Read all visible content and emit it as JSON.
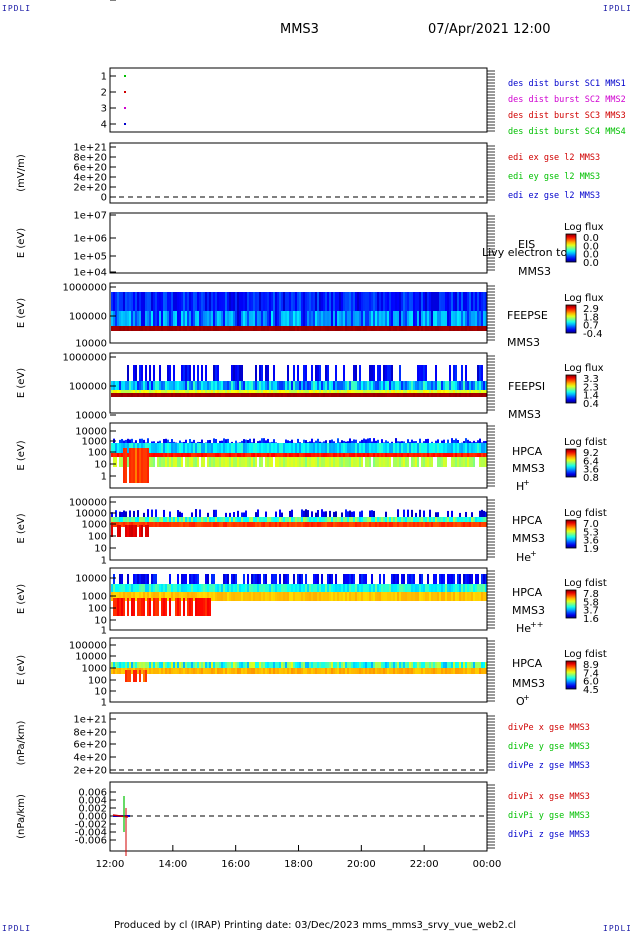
{
  "header": {
    "corner_left_top": "IPDLI",
    "corner_right_top": "IPDLI",
    "corner_left_bottom": "IPDLI",
    "corner_right_bottom": "IPDLI",
    "spacecraft": "MMS3",
    "datetime": "07/Apr/2021 12:00"
  },
  "footer": {
    "text": "Produced by cl (IRAP)   Printing date: 03/Dec/2023   mms_mms3_srvy_vue_web2.cl"
  },
  "chart_data": [
    {
      "id": "burst-flags",
      "type": "scatter",
      "yticks": [
        "1",
        "2",
        "3",
        "4"
      ],
      "ylim": [
        0.5,
        4.5
      ],
      "series": [
        {
          "name": "des dist burst SC1 MMS1",
          "color": "#0000cc",
          "x": [
            0.5
          ],
          "y": [
            1
          ]
        },
        {
          "name": "des dist burst SC2 MMS2",
          "color": "#d000d0",
          "x": [
            0.5
          ],
          "y": [
            2
          ]
        },
        {
          "name": "des dist burst SC3 MMS3",
          "color": "#d00000",
          "x": [
            0.5
          ],
          "y": [
            3
          ]
        },
        {
          "name": "des dist burst SC4 MMS4",
          "color": "#00c000",
          "x": [
            0.5
          ],
          "y": [
            4
          ]
        }
      ]
    },
    {
      "id": "edi-efield",
      "type": "line",
      "ylabel": "(mV/m)",
      "yticks": [
        "1e+21",
        "8e+20",
        "6e+20",
        "4e+20",
        "2e+20",
        "0"
      ],
      "legend": [
        {
          "name": "edi ex gse l2 MMS3",
          "color": "#d00000"
        },
        {
          "name": "edi ey gse l2 MMS3",
          "color": "#00c000"
        },
        {
          "name": "edi ez gse l2 MMS3",
          "color": "#0000cc"
        }
      ]
    },
    {
      "id": "eis",
      "type": "heatmap",
      "ylabel": "E (eV)",
      "yticks": [
        "1e+07",
        "1e+06",
        "1e+05",
        "1e+04"
      ],
      "instrument": "EIS",
      "sc": "MMS3",
      "overlay": "Livy electron to",
      "cbar_title": "Log flux",
      "cbar_ticks": [
        "0.0",
        "0.0",
        "0.0",
        "0.0"
      ]
    },
    {
      "id": "feepse",
      "type": "heatmap",
      "ylabel": "E (eV)",
      "yticks": [
        "1000000",
        "100000",
        "10000"
      ],
      "instrument": "FEEPSE",
      "sc": "MMS3",
      "cbar_title": "Log flux",
      "cbar_ticks": [
        "2.9",
        "1.8",
        "0.7",
        "-0.4"
      ]
    },
    {
      "id": "feepsi",
      "type": "heatmap",
      "ylabel": "E (eV)",
      "yticks": [
        "1000000",
        "100000",
        "10000"
      ],
      "instrument": "FEEPSI",
      "sc": "MMS3",
      "cbar_title": "Log flux",
      "cbar_ticks": [
        "3.3",
        "2.3",
        "1.4",
        "0.4"
      ]
    },
    {
      "id": "hpca-h",
      "type": "heatmap",
      "ylabel": "E (eV)",
      "yticks": [
        "10000",
        "1000",
        "100",
        "10",
        "1"
      ],
      "instrument": "HPCA",
      "sc": "MMS3",
      "species": "H",
      "charge": "+",
      "cbar_title": "Log fdist",
      "cbar_ticks": [
        "9.2",
        "6.4",
        "3.6",
        "0.8"
      ]
    },
    {
      "id": "hpca-he",
      "type": "heatmap",
      "ylabel": "E (eV)",
      "yticks": [
        "100000",
        "10000",
        "1000",
        "100",
        "10",
        "1"
      ],
      "instrument": "HPCA",
      "sc": "MMS3",
      "species": "He",
      "charge": "+",
      "cbar_title": "Log fdist",
      "cbar_ticks": [
        "7.0",
        "5.3",
        "3.6",
        "1.9"
      ]
    },
    {
      "id": "hpca-hepp",
      "type": "heatmap",
      "ylabel": "E (eV)",
      "yticks": [
        "10000",
        "1000",
        "100",
        "10",
        "1"
      ],
      "instrument": "HPCA",
      "sc": "MMS3",
      "species": "He",
      "charge": "++",
      "cbar_title": "Log fdist",
      "cbar_ticks": [
        "7.8",
        "5.8",
        "3.7",
        "1.6"
      ]
    },
    {
      "id": "hpca-o",
      "type": "heatmap",
      "ylabel": "E (eV)",
      "yticks": [
        "100000",
        "10000",
        "1000",
        "100",
        "10",
        "1"
      ],
      "instrument": "HPCA",
      "sc": "MMS3",
      "species": "O",
      "charge": "+",
      "cbar_title": "Log fdist",
      "cbar_ticks": [
        "8.9",
        "7.4",
        "6.0",
        "4.5"
      ]
    },
    {
      "id": "divpe",
      "type": "line",
      "ylabel": "(nPa/km)",
      "yticks": [
        "1e+21",
        "8e+20",
        "6e+20",
        "4e+20",
        "2e+20",
        "0"
      ],
      "legend": [
        {
          "name": "divPe x gse MMS3",
          "color": "#d00000"
        },
        {
          "name": "divPe y gse MMS3",
          "color": "#00c000"
        },
        {
          "name": "divPe z gse MMS3",
          "color": "#0000cc"
        }
      ]
    },
    {
      "id": "divpi",
      "type": "line",
      "ylabel": "(nPa/km)",
      "yticks": [
        "0.006",
        "0.004",
        "0.002",
        "0.000",
        "-0.002",
        "-0.004",
        "-0.006"
      ],
      "legend": [
        {
          "name": "divPi x gse MMS3",
          "color": "#d00000"
        },
        {
          "name": "divPi y gse MMS3",
          "color": "#00c000"
        },
        {
          "name": "divPi z gse MMS3",
          "color": "#0000cc"
        }
      ],
      "xticks": [
        "12:00",
        "14:00",
        "16:00",
        "18:00",
        "20:00",
        "22:00",
        "00:00"
      ]
    }
  ]
}
